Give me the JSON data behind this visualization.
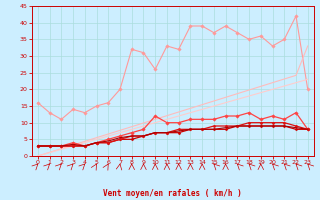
{
  "title": "",
  "xlabel": "Vent moyen/en rafales ( km/h )",
  "bg_color": "#cceeff",
  "grid_color": "#aadddd",
  "x": [
    0,
    1,
    2,
    3,
    4,
    5,
    6,
    7,
    8,
    9,
    10,
    11,
    12,
    13,
    14,
    15,
    16,
    17,
    18,
    19,
    20,
    21,
    22,
    23
  ],
  "series": [
    {
      "color": "#ff9999",
      "linewidth": 0.8,
      "marker": "D",
      "markersize": 1.8,
      "y": [
        16,
        13,
        11,
        14,
        13,
        15,
        16,
        20,
        32,
        31,
        26,
        33,
        32,
        39,
        39,
        37,
        39,
        37,
        35,
        36,
        33,
        35,
        42,
        20
      ]
    },
    {
      "color": "#ffbbbb",
      "linewidth": 0.8,
      "marker": null,
      "markersize": 0,
      "y": [
        0,
        1.1,
        2.2,
        3.3,
        4.4,
        5.5,
        6.6,
        7.7,
        8.8,
        9.9,
        11.0,
        12.1,
        13.2,
        14.3,
        15.4,
        16.5,
        17.6,
        18.7,
        19.8,
        20.9,
        22.0,
        23.1,
        24.2,
        33
      ]
    },
    {
      "color": "#ffcccc",
      "linewidth": 0.8,
      "marker": null,
      "markersize": 0,
      "y": [
        0,
        1.0,
        2.0,
        3.0,
        4.0,
        5.0,
        6.0,
        7.0,
        8.0,
        9.0,
        10.0,
        11.0,
        12.0,
        13.0,
        14.0,
        15.0,
        16.0,
        17.0,
        18.0,
        19.0,
        20.0,
        21.0,
        22.0,
        23.0
      ]
    },
    {
      "color": "#ff4444",
      "linewidth": 0.9,
      "marker": "D",
      "markersize": 1.8,
      "y": [
        3,
        3,
        3,
        4,
        3,
        4,
        5,
        6,
        7,
        8,
        12,
        10,
        10,
        11,
        11,
        11,
        12,
        12,
        13,
        11,
        12,
        11,
        13,
        8
      ]
    },
    {
      "color": "#cc0000",
      "linewidth": 0.9,
      "marker": "D",
      "markersize": 1.5,
      "y": [
        3,
        3,
        3,
        3,
        3,
        4,
        4,
        5,
        5,
        6,
        7,
        7,
        7,
        8,
        8,
        8,
        8,
        9,
        9,
        9,
        9,
        9,
        8,
        8
      ]
    },
    {
      "color": "#dd1111",
      "linewidth": 0.9,
      "marker": "D",
      "markersize": 1.5,
      "y": [
        3,
        3,
        3,
        3,
        3,
        4,
        4,
        5,
        6,
        6,
        7,
        7,
        8,
        8,
        8,
        9,
        9,
        9,
        10,
        10,
        10,
        10,
        9,
        8
      ]
    },
    {
      "color": "#aa0000",
      "linewidth": 0.8,
      "marker": null,
      "markersize": 0,
      "y": [
        3,
        3,
        3,
        3.5,
        3,
        4,
        4.5,
        5.5,
        6,
        6,
        7,
        7,
        7.5,
        8,
        8,
        8,
        8.5,
        9,
        9,
        9,
        9,
        9,
        8.5,
        8
      ]
    }
  ],
  "ylim": [
    0,
    45
  ],
  "xlim": [
    -0.5,
    23.5
  ],
  "yticks": [
    0,
    5,
    10,
    15,
    20,
    25,
    30,
    35,
    40,
    45
  ],
  "xticks": [
    0,
    1,
    2,
    3,
    4,
    5,
    6,
    7,
    8,
    9,
    10,
    11,
    12,
    13,
    14,
    15,
    16,
    17,
    18,
    19,
    20,
    21,
    22,
    23
  ],
  "tick_color": "#cc0000",
  "label_color": "#cc0000",
  "axis_color": "#cc0000",
  "arrow_angles": [
    45,
    45,
    45,
    45,
    45,
    30,
    30,
    10,
    0,
    0,
    0,
    0,
    0,
    0,
    0,
    315,
    0,
    315,
    315,
    0,
    315,
    315,
    315,
    315
  ]
}
